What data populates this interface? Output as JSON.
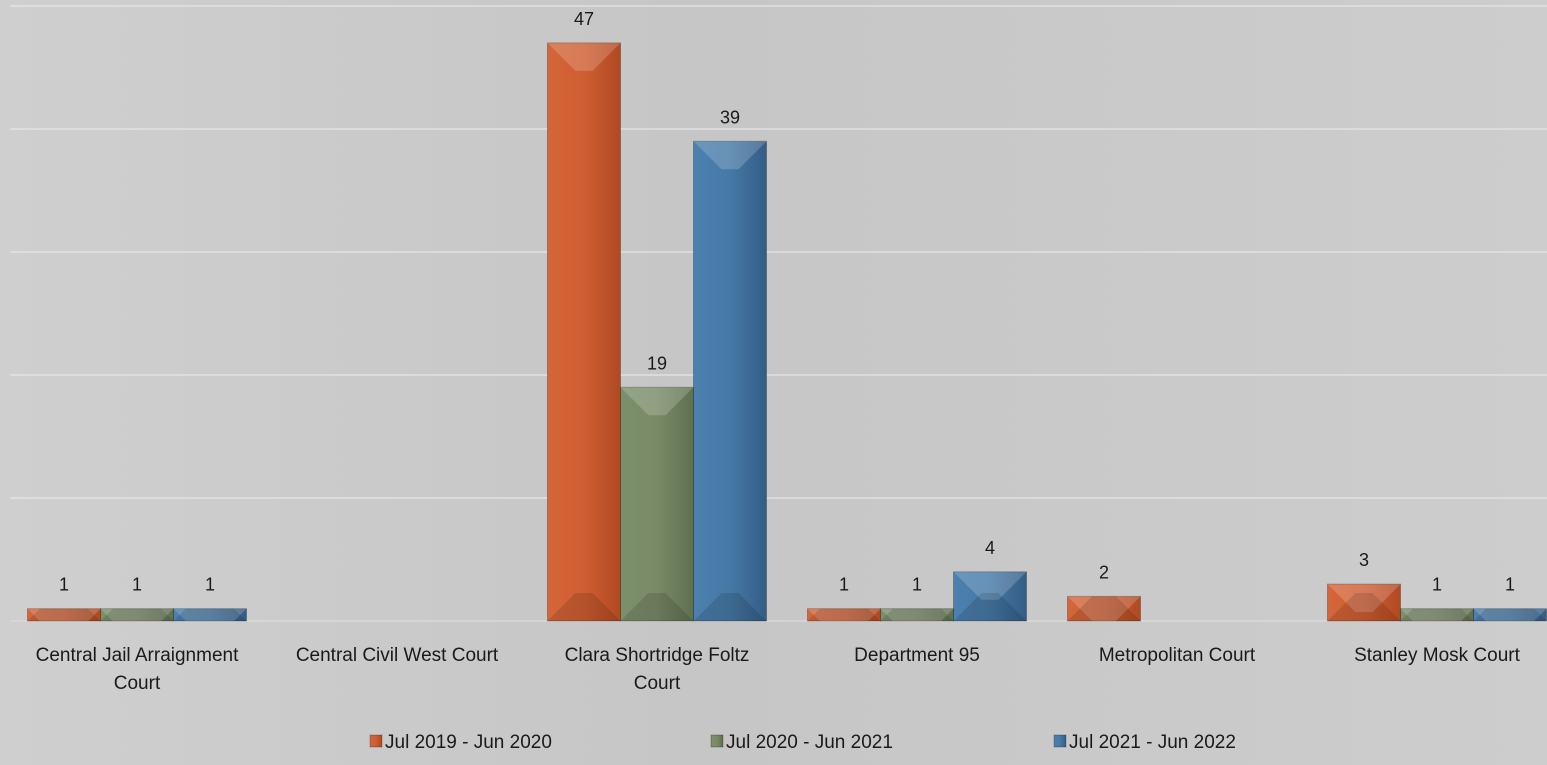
{
  "chart_data": {
    "type": "bar",
    "title": "",
    "xlabel": "",
    "ylabel": "",
    "ylim": [
      0,
      50
    ],
    "grid": true,
    "legend_position": "bottom",
    "categories": [
      [
        "Central Jail Arraignment",
        "Court"
      ],
      [
        "Central Civil West Court"
      ],
      [
        "Clara Shortridge Foltz",
        "Court"
      ],
      [
        "Department 95"
      ],
      [
        "Metropolitan Court"
      ],
      [
        "Stanley Mosk Court"
      ]
    ],
    "series": [
      {
        "name": "Jul 2019 - Jun 2020",
        "color": "#c8552a",
        "values": [
          1,
          null,
          47,
          1,
          2,
          3
        ]
      },
      {
        "name": "Jul 2020 - Jun 2021",
        "color": "#6d7f5c",
        "values": [
          1,
          null,
          19,
          1,
          null,
          1
        ]
      },
      {
        "name": "Jul 2021 - Jun 2022",
        "color": "#3d6f9c",
        "values": [
          1,
          null,
          39,
          4,
          null,
          1
        ]
      }
    ]
  }
}
